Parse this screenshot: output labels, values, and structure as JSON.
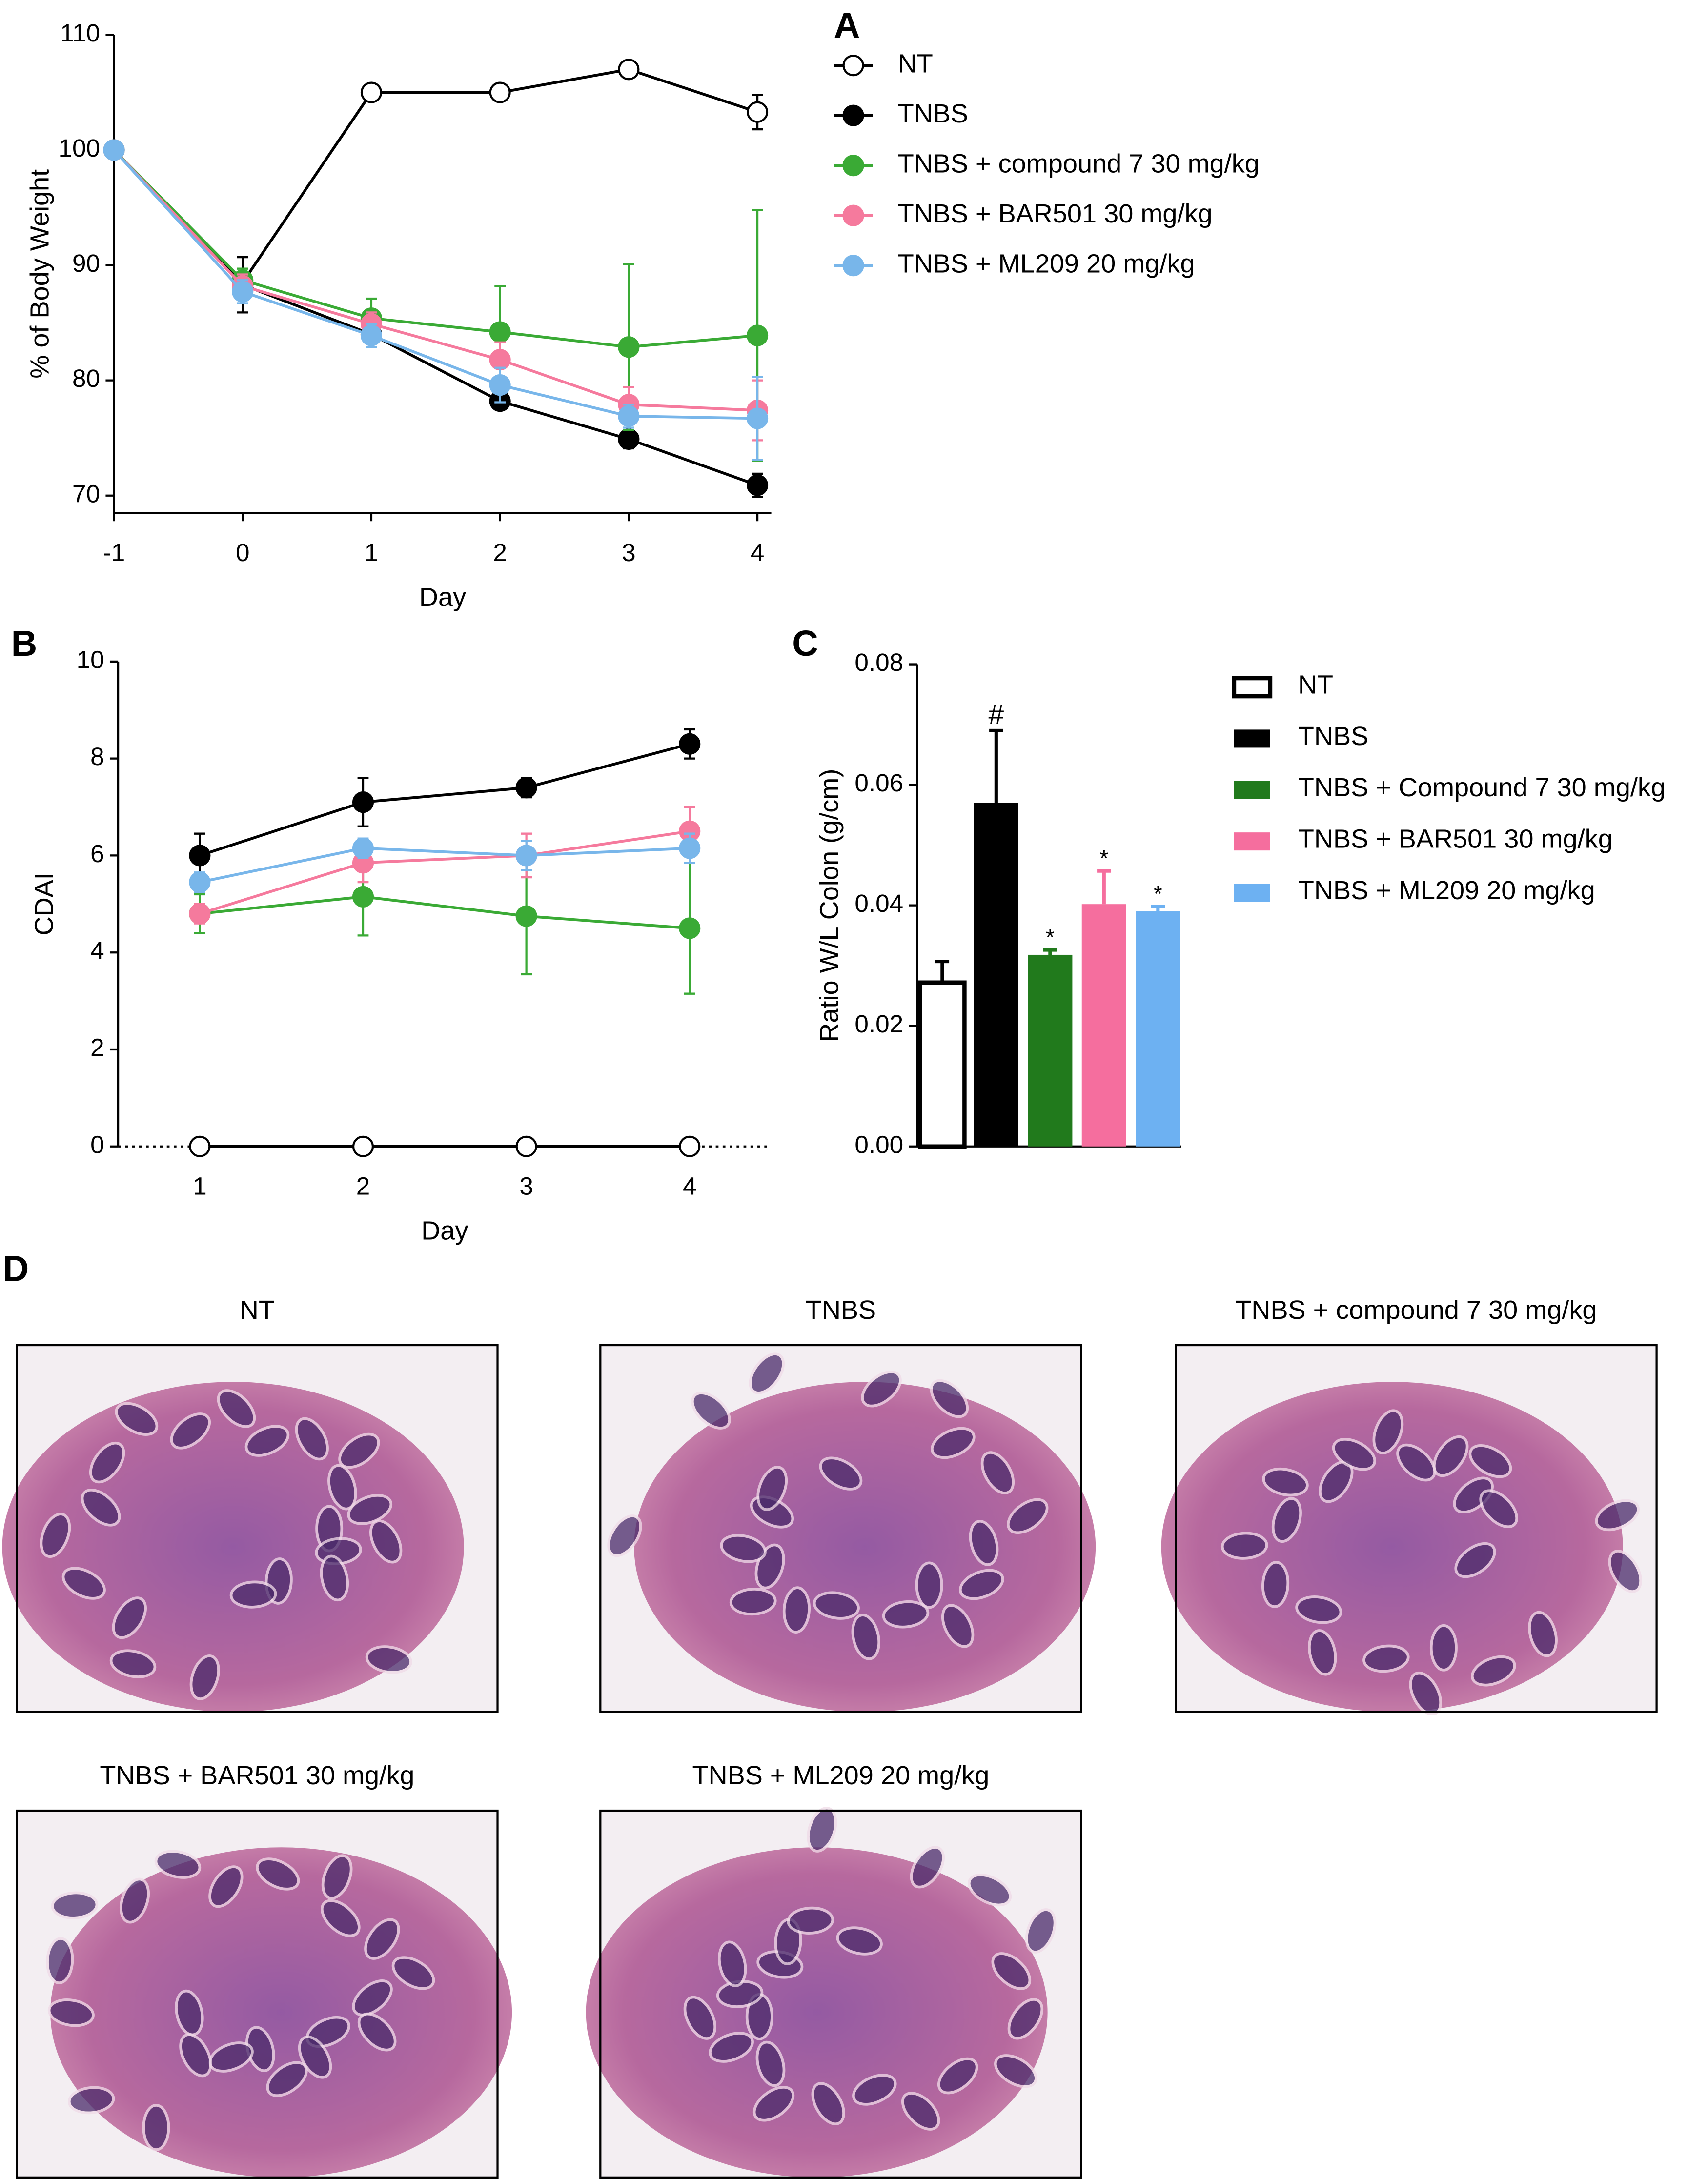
{
  "chart_data": [
    {
      "type": "line",
      "panel_label": "A",
      "xlabel": "Day",
      "ylabel": "% of Body Weight",
      "x": [
        -1,
        0,
        1,
        2,
        3,
        4
      ],
      "xlim": [
        -1,
        4
      ],
      "xticks": [
        -1,
        0,
        1,
        2,
        3,
        4
      ],
      "ylim": [
        68.5,
        110
      ],
      "yticks": [
        70,
        80,
        90,
        100,
        110
      ],
      "legend": "right",
      "series": [
        {
          "name": "NT",
          "color": "#000000",
          "marker_fill": "#ffffff",
          "values": [
            100,
            88.5,
            105,
            105,
            107,
            103.3
          ],
          "errors": [
            0,
            0.5,
            0.4,
            0.4,
            0.4,
            1.5
          ]
        },
        {
          "name": "TNBS",
          "color": "#000000",
          "values": [
            100,
            88.3,
            84,
            78.2,
            74.9,
            70.9
          ],
          "errors": [
            0,
            2.4,
            0.5,
            0.5,
            0.8,
            1
          ]
        },
        {
          "name": "TNBS + compound 7 30 mg/kg",
          "color": "#3aaa35",
          "values": [
            100,
            88.7,
            85.4,
            84.2,
            82.9,
            83.9
          ],
          "errors": [
            0,
            1,
            1.7,
            4,
            7.2,
            10.9
          ]
        },
        {
          "name": "TNBS + BAR501 30 mg/kg",
          "color": "#f57a9d",
          "values": [
            100,
            88.2,
            84.9,
            81.8,
            77.9,
            77.4
          ],
          "errors": [
            0,
            1,
            1,
            1.5,
            1.5,
            2.6
          ]
        },
        {
          "name": "TNBS + ML209 20 mg/kg",
          "color": "#78b6ea",
          "values": [
            100,
            87.7,
            83.9,
            79.6,
            76.9,
            76.7
          ],
          "errors": [
            0,
            1,
            1,
            1.5,
            1,
            3.6
          ]
        }
      ]
    },
    {
      "type": "line",
      "panel_label": "B",
      "xlabel": "Day",
      "ylabel": "CDAI",
      "x": [
        1,
        2,
        3,
        4
      ],
      "xlim": [
        0.5,
        4.5
      ],
      "xticks": [
        1,
        2,
        3,
        4
      ],
      "ylim": [
        0,
        10
      ],
      "yticks": [
        0,
        2,
        4,
        6,
        8,
        10
      ],
      "series": [
        {
          "name": "NT",
          "color": "#000000",
          "marker_fill": "#ffffff",
          "values": [
            0,
            0,
            0,
            0
          ],
          "errors": [
            0,
            0,
            0,
            0
          ]
        },
        {
          "name": "TNBS",
          "color": "#000000",
          "values": [
            6,
            7.1,
            7.4,
            8.3
          ],
          "errors": [
            0.45,
            0.5,
            0.2,
            0.3
          ]
        },
        {
          "name": "TNBS + compound 7 30 mg/kg",
          "color": "#3aaa35",
          "values": [
            4.8,
            5.15,
            4.75,
            4.5
          ],
          "errors": [
            0.4,
            0.8,
            1.2,
            1.35
          ]
        },
        {
          "name": "TNBS + BAR501 30 mg/kg",
          "color": "#f57a9d",
          "values": [
            4.8,
            5.85,
            6,
            6.5
          ],
          "errors": [
            0.2,
            0.4,
            0.45,
            0.5
          ]
        },
        {
          "name": "TNBS + ML209 20 mg/kg",
          "color": "#78b6ea",
          "values": [
            5.45,
            6.15,
            6,
            6.15
          ],
          "errors": [
            0.2,
            0.2,
            0.3,
            0.3
          ]
        }
      ]
    },
    {
      "type": "bar",
      "panel_label": "C",
      "ylabel": "Ratio W/L Colon (g/cm)",
      "ylim": [
        0,
        0.08
      ],
      "yticks": [
        {
          "value": 0,
          "label": "0.00"
        },
        {
          "value": 0.02,
          "label": "0.02"
        },
        {
          "value": 0.04,
          "label": "0.04"
        },
        {
          "value": 0.06,
          "label": "0.06"
        },
        {
          "value": 0.08,
          "label": "0.08"
        }
      ],
      "legend": "right",
      "series": [
        {
          "name": "NT",
          "color": "#ffffff",
          "edgecolor": "#000000",
          "values": [
            0.0272
          ],
          "errors": [
            0.0035
          ]
        },
        {
          "name": "TNBS",
          "color": "#000000",
          "values": [
            0.057
          ],
          "errors": [
            0.012
          ],
          "annotation": "#"
        },
        {
          "name": "TNBS + Compound 7  30 mg/kg",
          "color": "#217a1c",
          "values": [
            0.0318
          ],
          "errors": [
            0.0008
          ],
          "annotation": "*"
        },
        {
          "name": "TNBS + BAR501 30 mg/kg",
          "color": "#f56e9e",
          "values": [
            0.0402
          ],
          "errors": [
            0.0055
          ],
          "annotation": "*"
        },
        {
          "name": "TNBS + ML209 20 mg/kg",
          "color": "#6db1f2",
          "values": [
            0.039
          ],
          "errors": [
            0.0008
          ],
          "annotation": "*"
        }
      ]
    }
  ],
  "histology": {
    "panel_label": "D",
    "images": [
      {
        "title": "NT"
      },
      {
        "title": "TNBS"
      },
      {
        "title": "TNBS + compound 7  30 mg/kg"
      },
      {
        "title": "TNBS + BAR501 30 mg/kg"
      },
      {
        "title": "TNBS + ML209 20 mg/kg"
      }
    ]
  }
}
